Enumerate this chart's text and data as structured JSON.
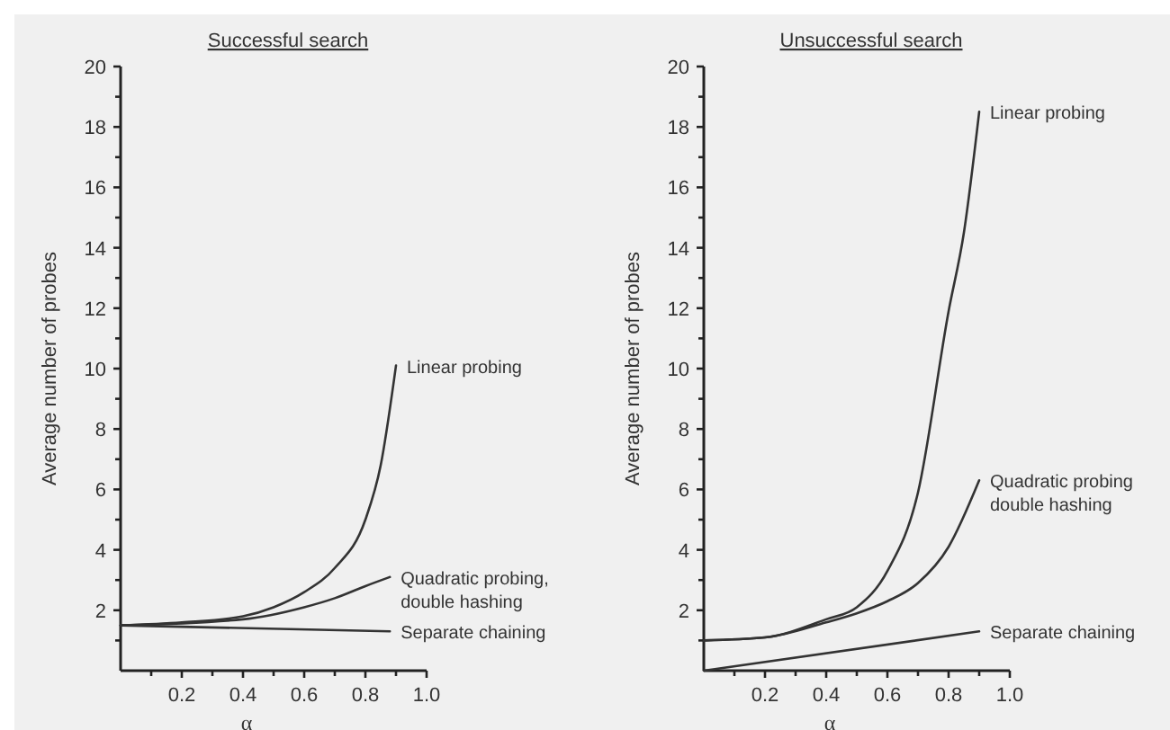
{
  "chart_data": [
    {
      "type": "line",
      "title": "Successful search",
      "xlabel": "α",
      "ylabel": "Average number of probes",
      "xlim": [
        0,
        1
      ],
      "ylim": [
        0,
        20
      ],
      "xticks": [
        {
          "value": 0.1,
          "label": null
        },
        0.2,
        {
          "value": 0.3,
          "label": null
        },
        0.4,
        {
          "value": 0.5,
          "label": null
        },
        0.6,
        {
          "value": 0.7,
          "label": null
        },
        0.8,
        {
          "value": 0.9,
          "label": null
        },
        {
          "value": 1,
          "label": "1.0"
        }
      ],
      "yticks": [
        {
          "value": 1,
          "label": null
        },
        2,
        {
          "value": 3,
          "label": null
        },
        4,
        {
          "value": 5,
          "label": null
        },
        6,
        {
          "value": 7,
          "label": null
        },
        8,
        {
          "value": 9,
          "label": null
        },
        10,
        {
          "value": 11,
          "label": null
        },
        12,
        {
          "value": 13,
          "label": null
        },
        14,
        {
          "value": 15,
          "label": null
        },
        16,
        {
          "value": 17,
          "label": null
        },
        18,
        {
          "value": 19,
          "label": null
        },
        20
      ],
      "grid": false,
      "marker": "none",
      "line_style": "solid",
      "series": [
        {
          "name": "Linear probing",
          "color": "#333333",
          "x": [
            0,
            0.2,
            0.4,
            0.5,
            0.6,
            0.7,
            0.8,
            0.85,
            0.9
          ],
          "values": [
            1.5,
            1.6,
            1.8,
            2.1,
            2.6,
            3.4,
            5,
            6.8,
            10.1
          ]
        },
        {
          "name": "Quadratic probing,\ndouble hashing",
          "color": "#333333",
          "x": [
            0,
            0.4,
            0.6,
            0.7,
            0.8,
            0.88
          ],
          "values": [
            1.5,
            1.7,
            2.1,
            2.4,
            2.8,
            3.1
          ]
        },
        {
          "name": "Separate chaining",
          "color": "#333333",
          "x": [
            0,
            0.88
          ],
          "values": [
            1.5,
            1.3
          ]
        }
      ]
    },
    {
      "type": "line",
      "title": "Unsuccessful search",
      "xlabel": "α",
      "ylabel": "Average number of probes",
      "xlim": [
        0,
        1
      ],
      "ylim": [
        0,
        20
      ],
      "xticks": [
        {
          "value": 0.1,
          "label": null
        },
        0.2,
        {
          "value": 0.3,
          "label": null
        },
        0.4,
        {
          "value": 0.5,
          "label": null
        },
        0.6,
        {
          "value": 0.7,
          "label": null
        },
        0.8,
        {
          "value": 0.9,
          "label": null
        },
        {
          "value": 1,
          "label": "1.0"
        }
      ],
      "yticks": [
        {
          "value": 1,
          "label": null
        },
        2,
        {
          "value": 3,
          "label": null
        },
        4,
        {
          "value": 5,
          "label": null
        },
        6,
        {
          "value": 7,
          "label": null
        },
        8,
        {
          "value": 9,
          "label": null
        },
        10,
        {
          "value": 11,
          "label": null
        },
        12,
        {
          "value": 13,
          "label": null
        },
        14,
        {
          "value": 15,
          "label": null
        },
        16,
        {
          "value": 17,
          "label": null
        },
        18,
        {
          "value": 19,
          "label": null
        },
        20
      ],
      "grid": false,
      "marker": "none",
      "line_style": "solid",
      "series": [
        {
          "name": "Linear probing",
          "color": "#333333",
          "x": [
            0,
            0.2,
            0.4,
            0.5,
            0.6,
            0.7,
            0.8,
            0.85,
            0.9
          ],
          "values": [
            1,
            1.1,
            1.7,
            2.1,
            3.3,
            5.9,
            11.9,
            14.5,
            18.5
          ]
        },
        {
          "name": "Quadratic probing\ndouble hashing",
          "color": "#333333",
          "x": [
            0,
            0.2,
            0.4,
            0.5,
            0.6,
            0.7,
            0.8,
            0.9
          ],
          "values": [
            1,
            1.1,
            1.6,
            1.9,
            2.3,
            2.9,
            4.1,
            6.3
          ]
        },
        {
          "name": "Separate chaining",
          "color": "#333333",
          "x": [
            0,
            0.9
          ],
          "values": [
            0,
            1.3
          ]
        }
      ]
    }
  ]
}
